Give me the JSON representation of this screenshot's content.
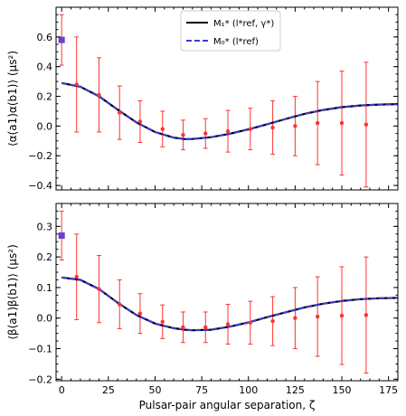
{
  "chart_data": [
    {
      "type": "line",
      "ylabel": "⟨α(a1)α(b1)⟩ (μs²)",
      "xlim": [
        -3,
        180
      ],
      "ylim": [
        -0.43,
        0.8
      ],
      "xticks": [
        0,
        25,
        50,
        75,
        100,
        125,
        150,
        175
      ],
      "yticks": [
        -0.4,
        -0.2,
        0.0,
        0.2,
        0.4,
        0.6
      ],
      "ytick_labels": [
        "−0.4",
        "−0.2",
        "0.0",
        "0.2",
        "0.4",
        "0.6"
      ],
      "legend": {
        "placement": "top-center",
        "entries": [
          {
            "label": "M₁* (l*ref, γ*)",
            "color": "#000000",
            "style": "solid"
          },
          {
            "label": "M₀* (l*ref)",
            "color": "#4444ee",
            "style": "dashed"
          }
        ]
      },
      "curve": {
        "x": [
          0,
          10,
          20,
          30,
          40,
          50,
          60,
          66,
          70,
          80,
          90,
          100,
          110,
          120,
          130,
          140,
          150,
          160,
          170,
          180
        ],
        "y": [
          0.29,
          0.265,
          0.2,
          0.11,
          0.025,
          -0.04,
          -0.078,
          -0.088,
          -0.087,
          -0.075,
          -0.052,
          -0.022,
          0.012,
          0.048,
          0.082,
          0.108,
          0.127,
          0.139,
          0.145,
          0.148
        ]
      },
      "zero_point": {
        "x": 0,
        "y": 0.58,
        "yerr": 0.17,
        "color": "#6a3fd0"
      },
      "points": {
        "x": [
          8,
          20,
          31,
          42,
          54,
          65,
          77,
          89,
          101,
          113,
          125,
          137,
          150,
          163
        ],
        "y": [
          0.28,
          0.21,
          0.09,
          0.03,
          -0.02,
          -0.06,
          -0.05,
          -0.035,
          -0.02,
          -0.01,
          0.0,
          0.02,
          0.02,
          0.01
        ],
        "yerr": [
          0.32,
          0.25,
          0.18,
          0.14,
          0.12,
          0.1,
          0.1,
          0.14,
          0.14,
          0.18,
          0.2,
          0.28,
          0.35,
          0.42
        ],
        "color": "#ff3333"
      }
    },
    {
      "type": "line",
      "xlabel": "Pulsar-pair angular separation, ζ",
      "ylabel": "⟨β(a1)β(b1)⟩ (μs²)",
      "xlim": [
        -3,
        180
      ],
      "ylim": [
        -0.205,
        0.375
      ],
      "xticks": [
        0,
        25,
        50,
        75,
        100,
        125,
        150,
        175
      ],
      "yticks": [
        -0.2,
        -0.1,
        0.0,
        0.1,
        0.2,
        0.3
      ],
      "ytick_labels": [
        "−0.2",
        "−0.1",
        "0.0",
        "0.1",
        "0.2",
        "0.3"
      ],
      "curve": {
        "x": [
          0,
          10,
          20,
          30,
          40,
          50,
          60,
          66,
          70,
          80,
          90,
          100,
          110,
          120,
          130,
          140,
          150,
          160,
          170,
          180
        ],
        "y": [
          0.133,
          0.125,
          0.095,
          0.05,
          0.01,
          -0.018,
          -0.033,
          -0.038,
          -0.04,
          -0.038,
          -0.028,
          -0.014,
          0.003,
          0.019,
          0.035,
          0.047,
          0.056,
          0.062,
          0.065,
          0.066
        ]
      },
      "zero_point": {
        "x": 0,
        "y": 0.27,
        "yerr": 0.08,
        "color": "#6a3fd0"
      },
      "points": {
        "x": [
          8,
          20,
          31,
          42,
          54,
          65,
          77,
          89,
          101,
          113,
          125,
          137,
          150,
          163
        ],
        "y": [
          0.135,
          0.095,
          0.045,
          0.015,
          -0.012,
          -0.03,
          -0.03,
          -0.02,
          -0.015,
          -0.01,
          0.0,
          0.005,
          0.008,
          0.01
        ],
        "yerr": [
          0.14,
          0.11,
          0.08,
          0.065,
          0.055,
          0.05,
          0.05,
          0.065,
          0.07,
          0.08,
          0.1,
          0.13,
          0.16,
          0.19
        ],
        "color": "#ff3333"
      }
    }
  ]
}
